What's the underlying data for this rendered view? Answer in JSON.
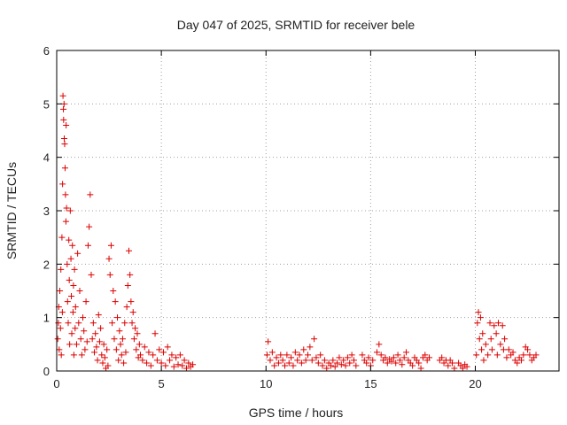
{
  "chart_data": {
    "type": "scatter",
    "title": "Day 047 of 2025, SRMTID for receiver bele",
    "xlabel": "GPS time / hours",
    "ylabel": "SRMTID / TECUs",
    "xlim": [
      0,
      24
    ],
    "ylim": [
      0,
      6
    ],
    "xticks": [
      0,
      5,
      10,
      15,
      20
    ],
    "yticks": [
      0,
      1,
      2,
      3,
      4,
      5,
      6
    ],
    "grid": true,
    "marker": "+",
    "colors": {
      "series": "#dd0000",
      "grid": "#a0a0a0",
      "axis": "#000000"
    },
    "series": [
      {
        "name": "SRMTID",
        "points": [
          [
            0.05,
            0.6
          ],
          [
            0.08,
            0.9
          ],
          [
            0.1,
            1.2
          ],
          [
            0.12,
            0.4
          ],
          [
            0.15,
            1.5
          ],
          [
            0.18,
            0.8
          ],
          [
            0.2,
            1.9
          ],
          [
            0.22,
            0.3
          ],
          [
            0.25,
            2.5
          ],
          [
            0.27,
            1.1
          ],
          [
            0.28,
            3.5
          ],
          [
            0.3,
            5.15
          ],
          [
            0.32,
            4.9
          ],
          [
            0.33,
            4.7
          ],
          [
            0.35,
            5.0
          ],
          [
            0.36,
            4.35
          ],
          [
            0.38,
            4.25
          ],
          [
            0.4,
            3.8
          ],
          [
            0.42,
            3.3
          ],
          [
            0.44,
            2.8
          ],
          [
            0.45,
            4.6
          ],
          [
            0.47,
            3.05
          ],
          [
            0.5,
            2.0
          ],
          [
            0.52,
            1.3
          ],
          [
            0.55,
            0.9
          ],
          [
            0.58,
            2.45
          ],
          [
            0.6,
            1.7
          ],
          [
            0.62,
            0.5
          ],
          [
            0.65,
            3.0
          ],
          [
            0.68,
            2.1
          ],
          [
            0.7,
            1.4
          ],
          [
            0.72,
            0.7
          ],
          [
            0.75,
            2.35
          ],
          [
            0.78,
            1.1
          ],
          [
            0.8,
            1.6
          ],
          [
            0.82,
            0.3
          ],
          [
            0.85,
            1.9
          ],
          [
            0.88,
            0.8
          ],
          [
            0.9,
            1.2
          ],
          [
            0.95,
            0.5
          ],
          [
            1.0,
            2.2
          ],
          [
            1.05,
            0.9
          ],
          [
            1.1,
            1.5
          ],
          [
            1.15,
            0.6
          ],
          [
            1.2,
            0.3
          ],
          [
            1.25,
            1.0
          ],
          [
            1.3,
            0.75
          ],
          [
            1.35,
            0.4
          ],
          [
            1.4,
            1.3
          ],
          [
            1.45,
            0.55
          ],
          [
            1.5,
            2.35
          ],
          [
            1.55,
            2.7
          ],
          [
            1.6,
            3.3
          ],
          [
            1.65,
            1.8
          ],
          [
            1.7,
            0.6
          ],
          [
            1.75,
            0.9
          ],
          [
            1.8,
            0.35
          ],
          [
            1.85,
            0.7
          ],
          [
            1.9,
            0.45
          ],
          [
            1.95,
            0.2
          ],
          [
            2.0,
            1.05
          ],
          [
            2.05,
            0.55
          ],
          [
            2.1,
            0.8
          ],
          [
            2.15,
            0.3
          ],
          [
            2.2,
            0.15
          ],
          [
            2.25,
            0.5
          ],
          [
            2.3,
            0.25
          ],
          [
            2.35,
            0.05
          ],
          [
            2.4,
            0.4
          ],
          [
            2.45,
            0.1
          ],
          [
            2.5,
            2.1
          ],
          [
            2.55,
            1.8
          ],
          [
            2.6,
            2.35
          ],
          [
            2.65,
            0.9
          ],
          [
            2.7,
            1.5
          ],
          [
            2.75,
            0.6
          ],
          [
            2.8,
            1.3
          ],
          [
            2.85,
            0.4
          ],
          [
            2.9,
            1.0
          ],
          [
            2.95,
            0.2
          ],
          [
            3.0,
            0.75
          ],
          [
            3.05,
            0.5
          ],
          [
            3.1,
            0.3
          ],
          [
            3.15,
            0.6
          ],
          [
            3.2,
            0.15
          ],
          [
            3.25,
            0.9
          ],
          [
            3.3,
            0.35
          ],
          [
            3.35,
            1.2
          ],
          [
            3.4,
            1.6
          ],
          [
            3.45,
            2.25
          ],
          [
            3.5,
            1.8
          ],
          [
            3.55,
            1.3
          ],
          [
            3.6,
            0.9
          ],
          [
            3.65,
            1.1
          ],
          [
            3.7,
            0.6
          ],
          [
            3.75,
            0.8
          ],
          [
            3.8,
            0.4
          ],
          [
            3.85,
            0.7
          ],
          [
            3.9,
            0.25
          ],
          [
            3.95,
            0.5
          ],
          [
            4.0,
            0.3
          ],
          [
            4.1,
            0.2
          ],
          [
            4.2,
            0.45
          ],
          [
            4.3,
            0.15
          ],
          [
            4.4,
            0.35
          ],
          [
            4.5,
            0.1
          ],
          [
            4.6,
            0.3
          ],
          [
            4.7,
            0.7
          ],
          [
            4.8,
            0.2
          ],
          [
            4.9,
            0.4
          ],
          [
            5.0,
            0.15
          ],
          [
            5.1,
            0.35
          ],
          [
            5.2,
            0.1
          ],
          [
            5.3,
            0.45
          ],
          [
            5.4,
            0.2
          ],
          [
            5.5,
            0.3
          ],
          [
            5.6,
            0.08
          ],
          [
            5.7,
            0.25
          ],
          [
            5.8,
            0.12
          ],
          [
            5.9,
            0.3
          ],
          [
            6.0,
            0.1
          ],
          [
            6.1,
            0.2
          ],
          [
            6.2,
            0.05
          ],
          [
            6.3,
            0.15
          ],
          [
            6.4,
            0.08
          ],
          [
            6.5,
            0.12
          ],
          [
            10.05,
            0.3
          ],
          [
            10.1,
            0.55
          ],
          [
            10.2,
            0.2
          ],
          [
            10.3,
            0.35
          ],
          [
            10.4,
            0.1
          ],
          [
            10.5,
            0.25
          ],
          [
            10.6,
            0.15
          ],
          [
            10.7,
            0.3
          ],
          [
            10.8,
            0.2
          ],
          [
            10.9,
            0.1
          ],
          [
            11.0,
            0.3
          ],
          [
            11.1,
            0.15
          ],
          [
            11.2,
            0.25
          ],
          [
            11.3,
            0.1
          ],
          [
            11.4,
            0.35
          ],
          [
            11.5,
            0.2
          ],
          [
            11.6,
            0.3
          ],
          [
            11.7,
            0.15
          ],
          [
            11.8,
            0.4
          ],
          [
            11.9,
            0.2
          ],
          [
            12.0,
            0.3
          ],
          [
            12.1,
            0.45
          ],
          [
            12.2,
            0.2
          ],
          [
            12.3,
            0.6
          ],
          [
            12.4,
            0.25
          ],
          [
            12.5,
            0.15
          ],
          [
            12.6,
            0.3
          ],
          [
            12.7,
            0.1
          ],
          [
            12.8,
            0.2
          ],
          [
            12.9,
            0.05
          ],
          [
            13.0,
            0.15
          ],
          [
            13.1,
            0.1
          ],
          [
            13.2,
            0.2
          ],
          [
            13.3,
            0.08
          ],
          [
            13.4,
            0.15
          ],
          [
            13.5,
            0.25
          ],
          [
            13.6,
            0.12
          ],
          [
            13.7,
            0.2
          ],
          [
            13.8,
            0.1
          ],
          [
            13.9,
            0.25
          ],
          [
            14.0,
            0.15
          ],
          [
            14.1,
            0.3
          ],
          [
            14.2,
            0.2
          ],
          [
            14.3,
            0.1
          ],
          [
            14.6,
            0.3
          ],
          [
            14.7,
            0.2
          ],
          [
            14.8,
            0.15
          ],
          [
            14.9,
            0.25
          ],
          [
            15.0,
            0.1
          ],
          [
            15.1,
            0.2
          ],
          [
            15.3,
            0.35
          ],
          [
            15.4,
            0.5
          ],
          [
            15.5,
            0.3
          ],
          [
            15.6,
            0.2
          ],
          [
            15.7,
            0.25
          ],
          [
            15.8,
            0.15
          ],
          [
            15.9,
            0.22
          ],
          [
            16.0,
            0.18
          ],
          [
            16.1,
            0.25
          ],
          [
            16.2,
            0.15
          ],
          [
            16.3,
            0.3
          ],
          [
            16.4,
            0.2
          ],
          [
            16.5,
            0.12
          ],
          [
            16.6,
            0.25
          ],
          [
            16.7,
            0.35
          ],
          [
            16.8,
            0.2
          ],
          [
            16.9,
            0.15
          ],
          [
            17.0,
            0.1
          ],
          [
            17.1,
            0.25
          ],
          [
            17.2,
            0.2
          ],
          [
            17.3,
            0.15
          ],
          [
            17.4,
            0.05
          ],
          [
            17.5,
            0.25
          ],
          [
            17.6,
            0.3
          ],
          [
            17.7,
            0.2
          ],
          [
            17.8,
            0.25
          ],
          [
            18.3,
            0.2
          ],
          [
            18.4,
            0.25
          ],
          [
            18.5,
            0.15
          ],
          [
            18.6,
            0.2
          ],
          [
            18.7,
            0.1
          ],
          [
            18.8,
            0.2
          ],
          [
            18.9,
            0.15
          ],
          [
            19.0,
            0.05
          ],
          [
            19.2,
            0.15
          ],
          [
            19.3,
            0.1
          ],
          [
            19.4,
            0.05
          ],
          [
            19.5,
            0.12
          ],
          [
            19.6,
            0.08
          ],
          [
            20.05,
            0.3
          ],
          [
            20.1,
            0.9
          ],
          [
            20.15,
            1.1
          ],
          [
            20.2,
            0.6
          ],
          [
            20.25,
            1.0
          ],
          [
            20.3,
            0.4
          ],
          [
            20.35,
            0.7
          ],
          [
            20.4,
            0.2
          ],
          [
            20.5,
            0.5
          ],
          [
            20.6,
            0.3
          ],
          [
            20.7,
            0.9
          ],
          [
            20.75,
            0.6
          ],
          [
            20.8,
            0.4
          ],
          [
            20.9,
            0.85
          ],
          [
            21.0,
            0.7
          ],
          [
            21.05,
            0.3
          ],
          [
            21.1,
            0.9
          ],
          [
            21.2,
            0.5
          ],
          [
            21.3,
            0.85
          ],
          [
            21.35,
            0.4
          ],
          [
            21.4,
            0.6
          ],
          [
            21.5,
            0.25
          ],
          [
            21.6,
            0.4
          ],
          [
            21.7,
            0.3
          ],
          [
            21.8,
            0.35
          ],
          [
            21.9,
            0.2
          ],
          [
            22.0,
            0.15
          ],
          [
            22.1,
            0.25
          ],
          [
            22.2,
            0.2
          ],
          [
            22.3,
            0.3
          ],
          [
            22.4,
            0.45
          ],
          [
            22.5,
            0.4
          ],
          [
            22.6,
            0.3
          ],
          [
            22.7,
            0.2
          ],
          [
            22.8,
            0.25
          ],
          [
            22.9,
            0.3
          ]
        ]
      }
    ]
  }
}
